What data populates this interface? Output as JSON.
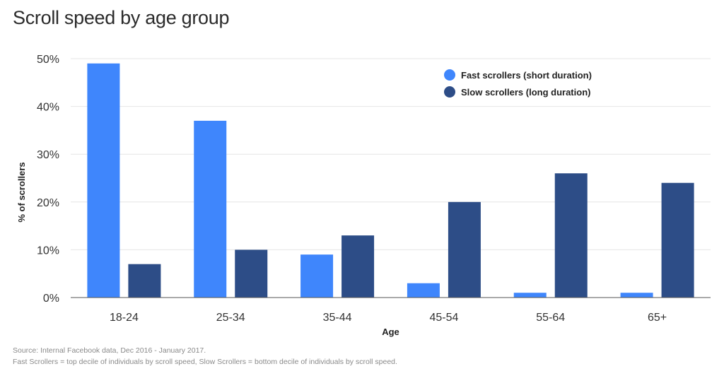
{
  "chart_data": {
    "type": "bar",
    "title": "Scroll speed by age group",
    "xlabel": "Age",
    "ylabel": "% of scrollers",
    "categories": [
      "18-24",
      "25-34",
      "35-44",
      "45-54",
      "55-64",
      "65+"
    ],
    "series": [
      {
        "name": "Fast scrollers (short duration)",
        "color": "#3f86fc",
        "values": [
          49,
          37,
          9,
          3,
          1,
          1
        ]
      },
      {
        "name": "Slow scrollers (long duration)",
        "color": "#2d4d87",
        "values": [
          7,
          10,
          13,
          20,
          26,
          24
        ]
      }
    ],
    "ylim": [
      0,
      50
    ],
    "yticks": [
      0,
      10,
      20,
      30,
      40,
      50
    ],
    "ytick_labels": [
      "0%",
      "10%",
      "20%",
      "30%",
      "40%",
      "50%"
    ],
    "grid": true,
    "legend_position": "top-right"
  },
  "footnotes": {
    "source": "Source: Internal Facebook data, Dec 2016 - January 2017.",
    "definition": "Fast Scrollers = top decile of individuals by scroll speed, Slow Scrollers = bottom decile of individuals by scroll speed."
  }
}
